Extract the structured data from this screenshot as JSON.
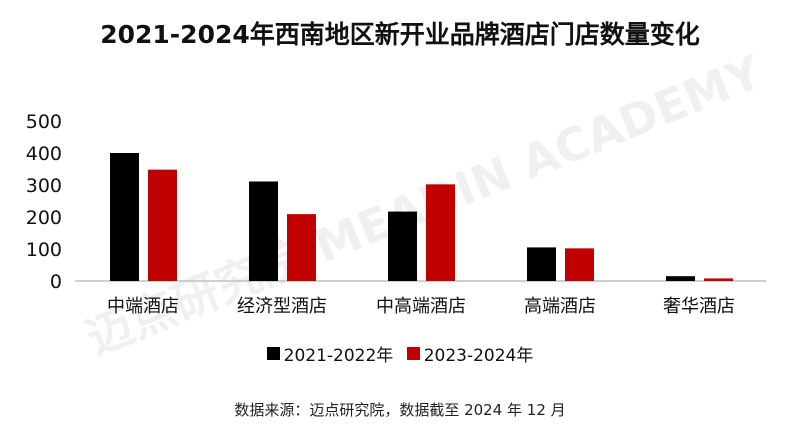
{
  "chart_data": {
    "type": "bar",
    "title": "2021-2024年西南地区新开业品牌酒店门店数量变化",
    "categories": [
      "中端酒店",
      "经济型酒店",
      "中高端酒店",
      "高端酒店",
      "奢华酒店"
    ],
    "series": [
      {
        "name": "2021-2022年",
        "color": "#000000",
        "values": [
          400,
          311,
          217,
          105,
          15
        ]
      },
      {
        "name": "2023-2024年",
        "color": "#c00000",
        "values": [
          348,
          209,
          302,
          102,
          8
        ]
      }
    ],
    "ylim": [
      0,
      500
    ],
    "yticks": [
      "0",
      "100",
      "200",
      "300",
      "400",
      "500"
    ],
    "grid": false,
    "legend": "bottom"
  },
  "watermark": "迈点研究院 MEADIN ACADEMY",
  "source": "数据来源：迈点研究院，数据截至 2024 年 12 月"
}
